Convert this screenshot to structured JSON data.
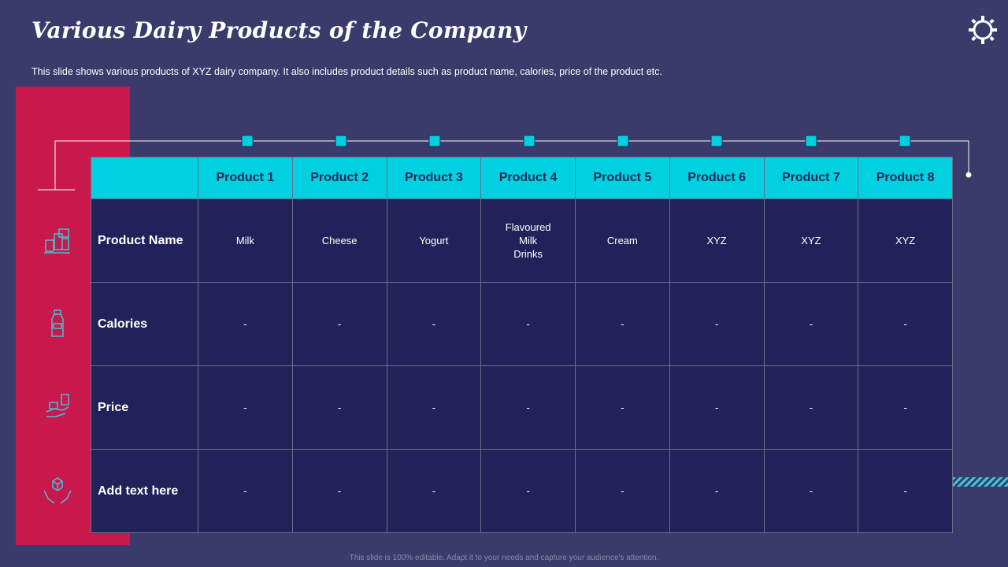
{
  "slide": {
    "title": "Various Dairy Products of the Company",
    "subtitle": "This slide shows various  products of XYZ dairy company. It also includes product details such as product name, calories, price of the product etc.",
    "footer": "This slide is 100% editable. Adapt it to your needs and capture your audience's attention."
  },
  "table": {
    "columns": [
      "Product 1",
      "Product 2",
      "Product 3",
      "Product 4",
      "Product 5",
      "Product 6",
      "Product 7",
      "Product 8"
    ],
    "rows": [
      {
        "label": "Product Name",
        "icon": "dairy-products-icon",
        "cells": [
          "Milk",
          "Cheese",
          "Yogurt",
          "Flavoured Milk Drinks",
          "Cream",
          "XYZ",
          "XYZ",
          "XYZ"
        ]
      },
      {
        "label": "Calories",
        "icon": "milk-bottle-icon",
        "cells": [
          "-",
          "-",
          "-",
          "-",
          "-",
          "-",
          "-",
          "-"
        ]
      },
      {
        "label": "Price",
        "icon": "price-tag-hand-icon",
        "cells": [
          "-",
          "-",
          "-",
          "-",
          "-",
          "-",
          "-",
          "-"
        ]
      },
      {
        "label": "Add text here",
        "icon": "hands-box-icon",
        "cells": [
          "-",
          "-",
          "-",
          "-",
          "-",
          "-",
          "-",
          "-"
        ]
      }
    ]
  },
  "colors": {
    "background": "#3a3a6b",
    "accent_red": "#c8184c",
    "header_cyan": "#00d0e0",
    "cell_navy": "#22225a"
  },
  "icons": [
    "settings-gear-icon",
    "dairy-products-icon",
    "milk-bottle-icon",
    "price-tag-hand-icon",
    "hands-box-icon"
  ]
}
